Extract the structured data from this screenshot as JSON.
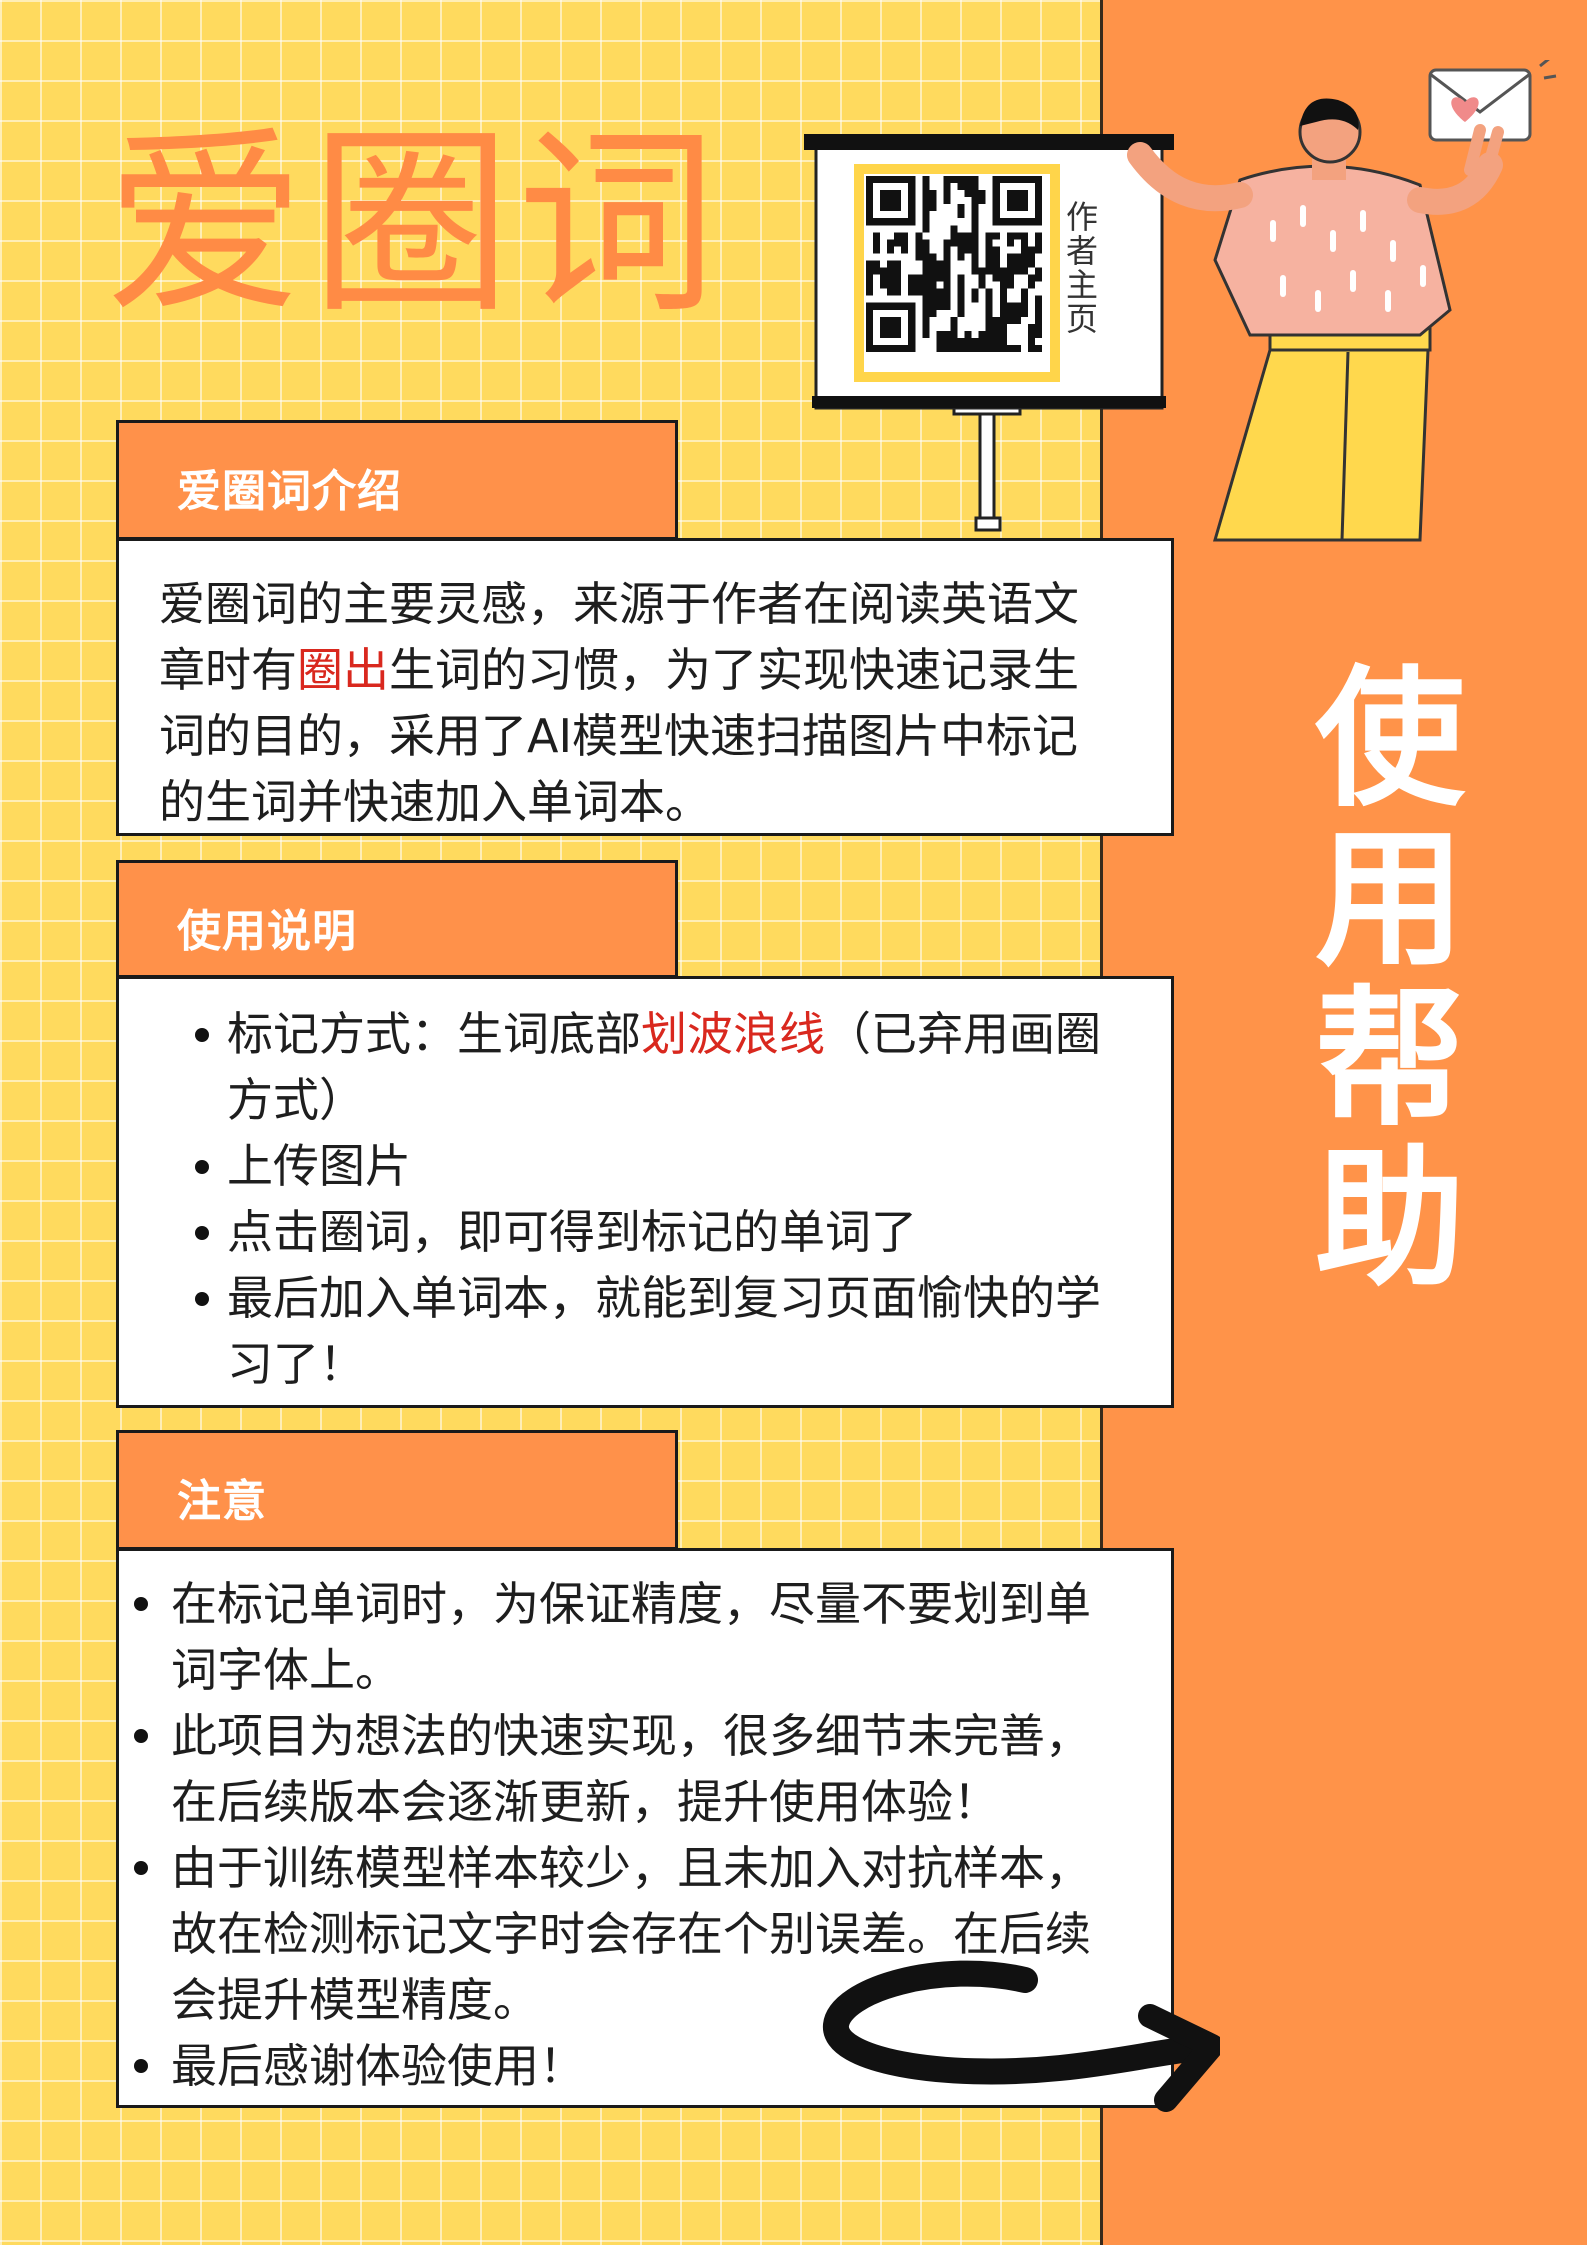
{
  "header": {
    "title": "爱圈词",
    "qr_caption": "作者主页"
  },
  "side_title": "使用帮助",
  "intro": {
    "title": "爱圈词介绍",
    "lines": [
      "爱圈词的主要灵感，来源于作者在阅读英语文",
      "章时有",
      "圈出",
      "生词的习惯，为了实现快速记录生",
      "词的目的，采用了AI模型快速扫描图片中标记",
      "的生词并快速加入单词本。"
    ]
  },
  "usage": {
    "title": "使用说明",
    "items": [
      {
        "lines": [
          "标记方式：生词底部",
          "划波浪线",
          "（已弃用画圈",
          "方式）"
        ]
      },
      {
        "lines": [
          "上传图片"
        ]
      },
      {
        "lines": [
          "点击圈词，即可得到标记的单词了"
        ]
      },
      {
        "lines": [
          "最后加入单词本，就能到复习页面愉快的学",
          "习了！"
        ]
      }
    ]
  },
  "notes": {
    "title": "注意",
    "items": [
      {
        "lines": [
          "在标记单词时，为保证精度，尽量不要划到单",
          "词字体上。"
        ]
      },
      {
        "lines": [
          "此项目为想法的快速实现，很多细节未完善，",
          "在后续版本会逐渐更新，提升使用体验！"
        ]
      },
      {
        "lines": [
          "由于训练模型样本较少，且未加入对抗样本，",
          "故在检测标记文字时会存在个别误差。在后续",
          "会提升模型精度。"
        ]
      },
      {
        "lines": [
          "最后感谢体验使用！"
        ]
      }
    ]
  },
  "colors": {
    "background": "#FFDA5E",
    "panel": "#FF9349",
    "tab": "#FF914A",
    "highlight": "#D9281E",
    "title_orange": "#FF8B45"
  },
  "icons": [
    "qr-code-icon",
    "envelope-heart-icon",
    "curved-arrow-icon",
    "person-illustration"
  ]
}
